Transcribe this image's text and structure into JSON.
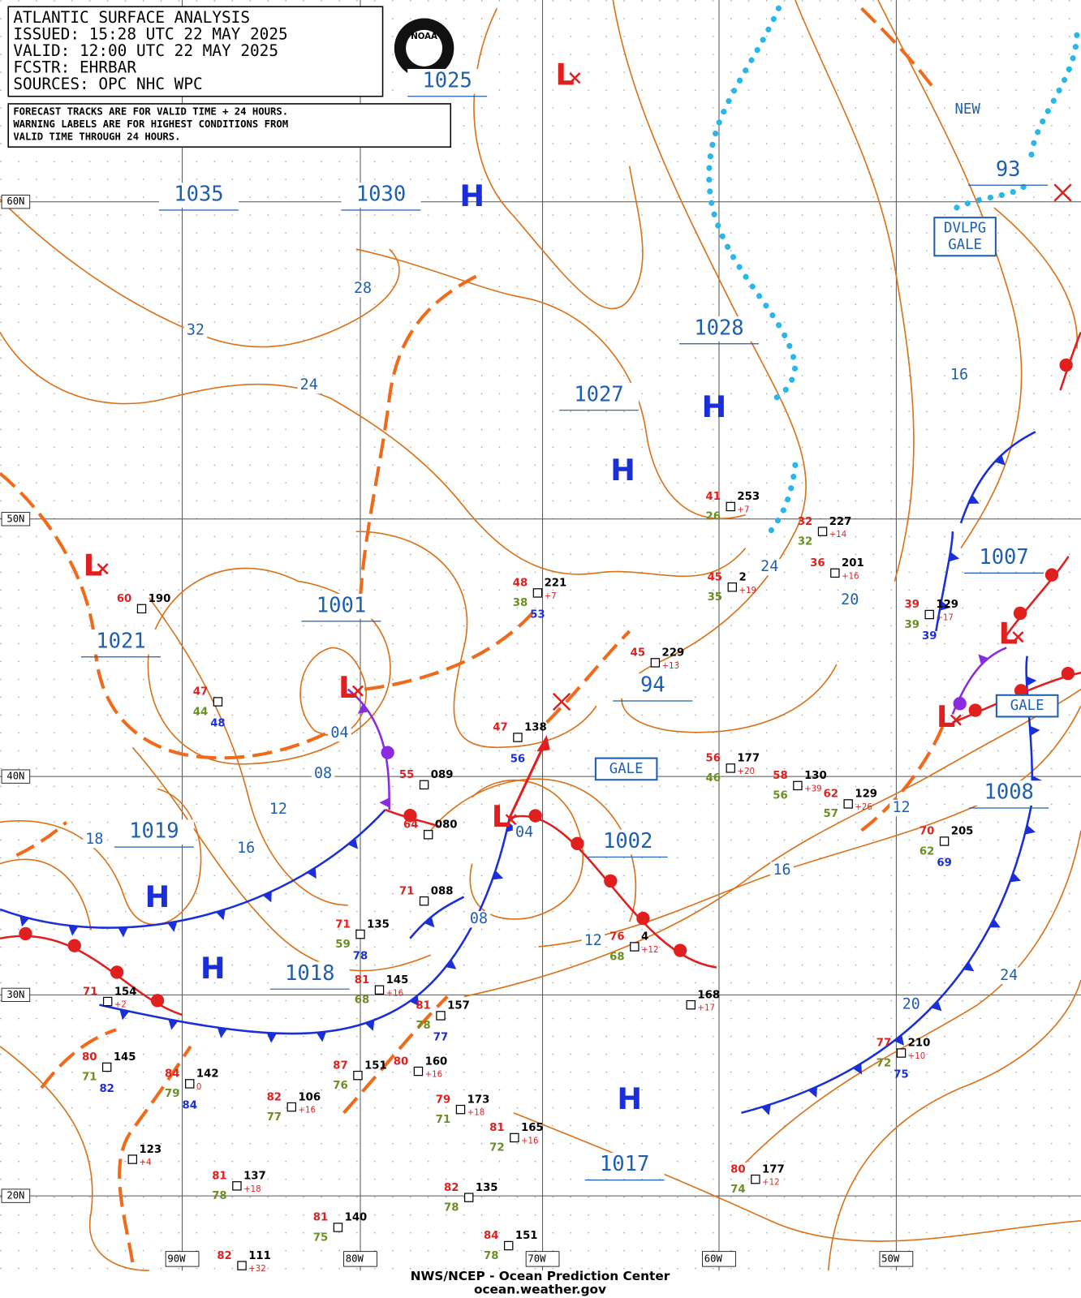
{
  "header": {
    "lines": [
      "ATLANTIC SURFACE ANALYSIS",
      "ISSUED: 15:28 UTC 22 MAY 2025",
      "VALID:  12:00 UTC 22 MAY 2025",
      "FCSTR:  EHRBAR",
      "SOURCES: OPC NHC WPC"
    ]
  },
  "notice": {
    "lines": [
      "FORECAST TRACKS ARE FOR VALID TIME + 24 HOURS.",
      "WARNING LABELS ARE FOR HIGHEST CONDITIONS FROM",
      "VALID TIME THROUGH 24 HOURS."
    ]
  },
  "logo": "NOAA",
  "grid": {
    "latitudes": [
      "60N",
      "50N",
      "40N",
      "30N",
      "20N"
    ],
    "longitudes": [
      "90W",
      "80W",
      "70W",
      "60W",
      "50W"
    ]
  },
  "centers": [
    "H",
    "H",
    "H",
    "H",
    "H",
    "H",
    "L",
    "L",
    "L",
    "L",
    "L",
    "L"
  ],
  "pressure_labels": [
    "1025",
    "1035",
    "1030",
    "1028",
    "1027",
    "1001",
    "1021",
    "94",
    "1019",
    "1002",
    "1018",
    "1017",
    "1007",
    "1008",
    "93"
  ],
  "isobar_labels": [
    "28",
    "32",
    "24",
    "16",
    "24",
    "20",
    "04",
    "08",
    "12",
    "18",
    "16",
    "04",
    "08",
    "12",
    "12",
    "16",
    "24",
    "20"
  ],
  "warnings": [
    {
      "lines": [
        "GALE"
      ]
    },
    {
      "lines": [
        "GALE"
      ]
    },
    {
      "lines": [
        "DVLPG",
        "GALE"
      ]
    },
    {
      "lines": [
        "NEW"
      ]
    }
  ],
  "stations": [
    {
      "temp": "41",
      "pressure": "253",
      "tendency": "+7",
      "dew": "26"
    },
    {
      "temp": "32",
      "pressure": "227",
      "tendency": "+14",
      "dew": "32"
    },
    {
      "temp": "48",
      "pressure": "221",
      "tendency": "+7",
      "dew": "38",
      "sst": "53"
    },
    {
      "temp": "45",
      "pressure": "2",
      "tendency": "+19",
      "dew": "35"
    },
    {
      "temp": "36",
      "pressure": "201",
      "tendency": "+16"
    },
    {
      "temp": "39",
      "pressure": "129",
      "tendency": "+17",
      "dew": "39",
      "sst": "39"
    },
    {
      "temp": "45",
      "pressure": "229",
      "tendency": "+13"
    },
    {
      "temp": "56",
      "pressure": "177",
      "tendency": "+20",
      "dew": "46"
    },
    {
      "temp": "58",
      "pressure": "130",
      "tendency": "+39",
      "dew": "56"
    },
    {
      "temp": "62",
      "pressure": "129",
      "tendency": "+26",
      "dew": "57"
    },
    {
      "temp": "70",
      "pressure": "205",
      "dew": "62",
      "sst": "69"
    },
    {
      "temp": "47",
      "dew": "44",
      "sst": "48"
    },
    {
      "temp": "60",
      "pressure": "190"
    },
    {
      "temp": "47",
      "pressure": "138",
      "sst": "56"
    },
    {
      "temp": "55",
      "pressure": "089"
    },
    {
      "temp": "64",
      "pressure": "080"
    },
    {
      "temp": "71",
      "pressure": "088"
    },
    {
      "temp": "71",
      "pressure": "135",
      "dew": "59",
      "sst": "78"
    },
    {
      "temp": "81",
      "pressure": "145",
      "tendency": "+16",
      "dew": "68"
    },
    {
      "temp": "76",
      "pressure": "4",
      "tendency": "+12",
      "dew": "68"
    },
    {
      "pressure": "168",
      "tendency": "+17"
    },
    {
      "temp": "71",
      "pressure": "154",
      "tendency": "+2"
    },
    {
      "temp": "84",
      "pressure": "142",
      "tendency": "0",
      "dew": "79",
      "sst": "84"
    },
    {
      "temp": "80",
      "pressure": "145",
      "dew": "71",
      "sst": "82"
    },
    {
      "temp": "82",
      "pressure": "106",
      "tendency": "+16",
      "dew": "77"
    },
    {
      "temp": "87",
      "pressure": "151",
      "dew": "76"
    },
    {
      "temp": "80",
      "pressure": "160",
      "tendency": "+16"
    },
    {
      "temp": "79",
      "pressure": "173",
      "tendency": "+18",
      "dew": "71"
    },
    {
      "temp": "81",
      "pressure": "165",
      "tendency": "+16",
      "dew": "72"
    },
    {
      "pressure": "123",
      "tendency": "+4"
    },
    {
      "temp": "81",
      "pressure": "137",
      "tendency": "+18",
      "dew": "78"
    },
    {
      "temp": "82",
      "pressure": "135",
      "dew": "78"
    },
    {
      "temp": "80",
      "pressure": "177",
      "tendency": "+12",
      "dew": "74"
    },
    {
      "temp": "77",
      "pressure": "210",
      "tendency": "+10",
      "dew": "72",
      "sst": "75"
    },
    {
      "temp": "81",
      "pressure": "140",
      "dew": "75"
    },
    {
      "temp": "84",
      "pressure": "151",
      "dew": "78"
    },
    {
      "temp": "82",
      "pressure": "111",
      "tendency": "+32"
    },
    {
      "temp": "81",
      "pressure": "157",
      "dew": "78",
      "sst": "77"
    }
  ],
  "footer": {
    "lines": [
      "NWS/NCEP - Ocean Prediction Center",
      "ocean.weather.gov"
    ]
  }
}
